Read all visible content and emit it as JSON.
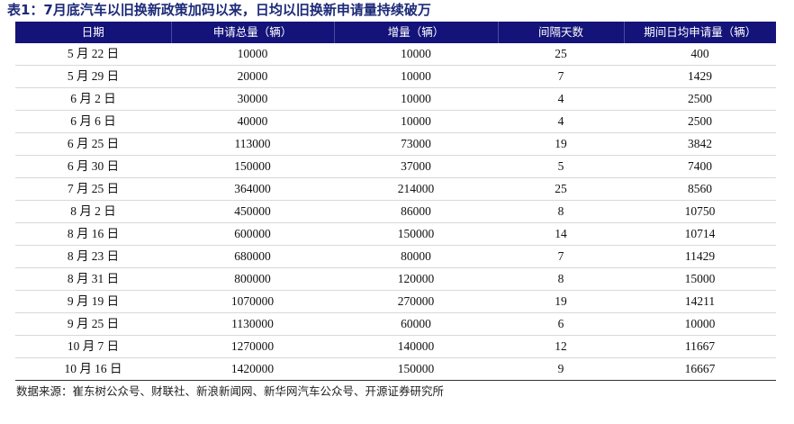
{
  "title": "表1：7月底汽车以旧换新政策加码以来，日均以旧换新申请量持续破万",
  "colors": {
    "header_bg": "#14137a",
    "title": "#1c2a78"
  },
  "headers": [
    "日期",
    "申请总量（辆）",
    "增量（辆）",
    "间隔天数",
    "期间日均申请量（辆）"
  ],
  "rows": [
    [
      "5 月 22 日",
      "10000",
      "10000",
      "25",
      "400"
    ],
    [
      "5 月 29 日",
      "20000",
      "10000",
      "7",
      "1429"
    ],
    [
      "6 月 2 日",
      "30000",
      "10000",
      "4",
      "2500"
    ],
    [
      "6 月 6 日",
      "40000",
      "10000",
      "4",
      "2500"
    ],
    [
      "6 月 25 日",
      "113000",
      "73000",
      "19",
      "3842"
    ],
    [
      "6 月 30 日",
      "150000",
      "37000",
      "5",
      "7400"
    ],
    [
      "7 月 25 日",
      "364000",
      "214000",
      "25",
      "8560"
    ],
    [
      "8 月 2 日",
      "450000",
      "86000",
      "8",
      "10750"
    ],
    [
      "8 月  16 日",
      "600000",
      "150000",
      "14",
      "10714"
    ],
    [
      "8 月 23 日",
      "680000",
      "80000",
      "7",
      "11429"
    ],
    [
      "8 月 31 日",
      "800000",
      "120000",
      "8",
      "15000"
    ],
    [
      "9 月 19 日",
      "1070000",
      "270000",
      "19",
      "14211"
    ],
    [
      "9 月 25 日",
      "1130000",
      "60000",
      "6",
      "10000"
    ],
    [
      "10 月 7 日",
      "1270000",
      "140000",
      "12",
      "11667"
    ],
    [
      "10 月 16 日",
      "1420000",
      "150000",
      "9",
      "16667"
    ]
  ],
  "source": "数据来源：崔东树公众号、财联社、新浪新闻网、新华网汽车公众号、开源证券研究所"
}
